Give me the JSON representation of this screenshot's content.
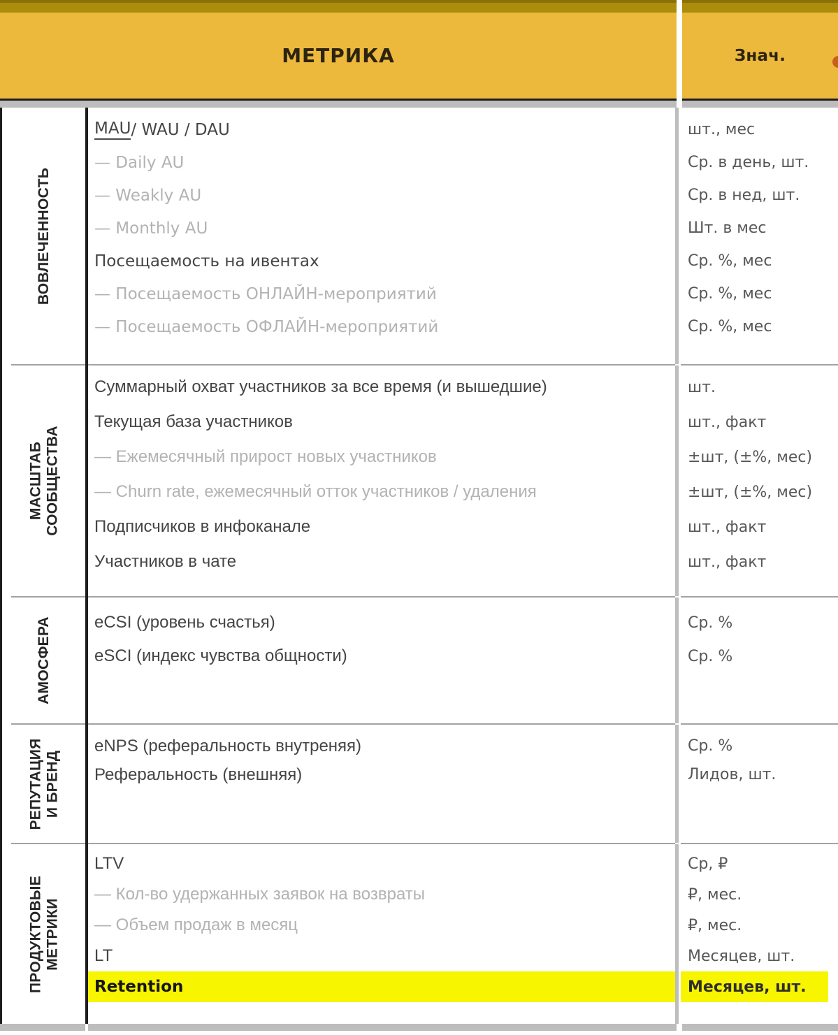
{
  "header": {
    "metric_label": "МЕТРИКА",
    "value_label": "Знач."
  },
  "sections": [
    {
      "label_lines": [
        "ВОВЛЕЧЕННОСТЬ"
      ],
      "rows": [
        {
          "metric": "MAU / WAU / DAU",
          "underline": "MAU",
          "value": "шт., мес",
          "style": "primary",
          "font": "round"
        },
        {
          "metric": "— Daily AU",
          "value": "Ср. в день, шт.",
          "style": "sub",
          "font": "round"
        },
        {
          "metric": "— Weakly AU",
          "value": "Ср. в нед, шт.",
          "style": "sub",
          "font": "round"
        },
        {
          "metric": "— Monthly AU",
          "value": "Шт. в мес",
          "style": "sub",
          "font": "round"
        },
        {
          "metric": "Посещаемость на ивентах",
          "value": "Ср. %, мес",
          "style": "primary",
          "font": "round"
        },
        {
          "metric": "— Посещаемость ОНЛАЙН-мероприятий",
          "value": "Ср. %, мес",
          "style": "sub",
          "font": "round"
        },
        {
          "metric": "— Посещаемость ОФЛАЙН-мероприятий",
          "value": "Ср. %, мес",
          "style": "sub",
          "font": "round"
        }
      ]
    },
    {
      "label_lines": [
        "МАСШТАБ",
        "СООБЩЕСТВА"
      ],
      "rows": [
        {
          "metric": "Суммарный охват участников за все время (и вышедшие)",
          "value": "шт.",
          "style": "primary",
          "font": "narrow"
        },
        {
          "metric": "Текущая база участников",
          "value": "шт., факт",
          "style": "primary",
          "font": "narrow"
        },
        {
          "metric": "— Ежемесячный прирост новых участников",
          "value": "±шт, (±%, мес)",
          "style": "sub",
          "font": "narrow"
        },
        {
          "metric": "— Churn rate, ежемесячный отток участников / удаления",
          "value": "±шт, (±%, мес)",
          "style": "sub",
          "font": "narrow"
        },
        {
          "metric": "Подписчиков в инфоканале",
          "value": "шт., факт",
          "style": "primary",
          "font": "narrow"
        },
        {
          "metric": "Участников в чате",
          "value": "шт., факт",
          "style": "primary",
          "font": "narrow"
        }
      ]
    },
    {
      "label_lines": [
        "АМОСФЕРА"
      ],
      "rows": [
        {
          "metric": "eCSI (уровень счастья)",
          "value": "Ср. %",
          "style": "primary",
          "font": "narrow"
        },
        {
          "metric": "eSCI (индекс чувства общности)",
          "value": "Ср. %",
          "style": "primary",
          "font": "narrow"
        }
      ]
    },
    {
      "label_lines": [
        "РЕПУТАЦИЯ",
        "И БРЕНД"
      ],
      "rows": [
        {
          "metric": "eNPS (реферальность внутреняя)",
          "value": "Ср. %",
          "style": "primary",
          "font": "narrow"
        },
        {
          "metric": "Реферальность (внешняя)",
          "value": "Лидов, шт.",
          "style": "primary",
          "font": "narrow"
        }
      ]
    },
    {
      "label_lines": [
        "ПРОДУКТОВЫЕ",
        "МЕТРИКИ"
      ],
      "rows": [
        {
          "metric": "LTV",
          "value": "Ср, ₽",
          "style": "primary",
          "font": "narrow"
        },
        {
          "metric": "— Кол-во удержанных заявок на возвраты",
          "value": "₽, мес.",
          "style": "sub",
          "font": "narrow"
        },
        {
          "metric": "— Объем продаж в месяц",
          "value": "₽, мес.",
          "style": "sub",
          "font": "narrow"
        },
        {
          "metric": "LT",
          "value": "Месяцев, шт.",
          "style": "primary",
          "font": "narrow"
        },
        {
          "metric": "Retention",
          "value": "Месяцев, шт.",
          "style": "highlight",
          "font": "round"
        }
      ]
    }
  ],
  "colors": {
    "header_bg": "#ecb93c",
    "top_band": "#ab8c0c",
    "top_band_dark": "#8a7107",
    "highlight": "#f7f500",
    "grid_gray": "#bdbdbd",
    "divider_gray": "#a3a3a3",
    "border_black": "#1d1d1d",
    "text_dark": "#454545",
    "text_sub": "#b3b3b3",
    "text_value": "#575757",
    "accent_partial_glyph": "#c8601a"
  }
}
